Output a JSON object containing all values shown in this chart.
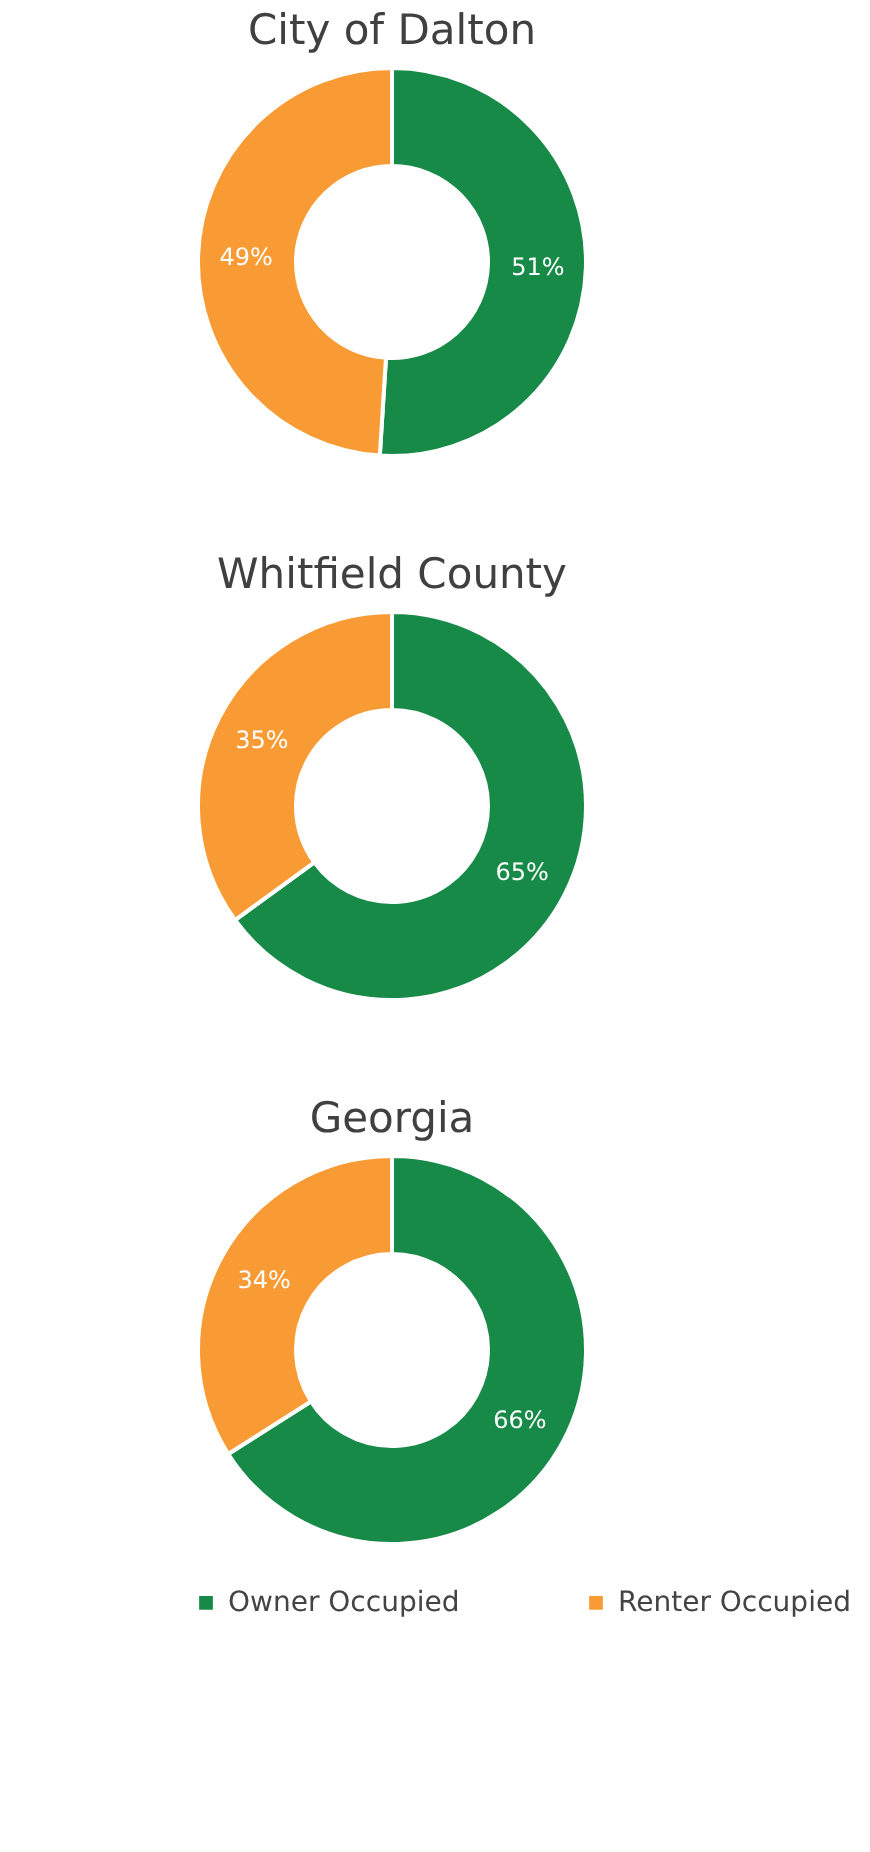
{
  "chart_data": [
    {
      "type": "donut",
      "title": "City of Dalton",
      "categories": [
        "Owner Occupied",
        "Renter Occupied"
      ],
      "values": [
        51,
        49
      ],
      "colors": [
        "#178a47",
        "#f89b35"
      ],
      "value_labels": [
        "51%",
        "49%"
      ],
      "legend": "bottom"
    },
    {
      "type": "donut",
      "title": "Whitfield County",
      "categories": [
        null,
        null
      ],
      "values": [
        65,
        35
      ],
      "colors": [
        "#178a47",
        "#f89b35"
      ],
      "value_labels": [
        "65%",
        "35%"
      ]
    },
    {
      "type": "donut",
      "title": "Georgia",
      "categories": [
        null,
        null
      ],
      "values": [
        66,
        34
      ],
      "colors": [
        "#178a47",
        "#f89b35"
      ],
      "value_labels": [
        "66%",
        "34%"
      ]
    }
  ]
}
